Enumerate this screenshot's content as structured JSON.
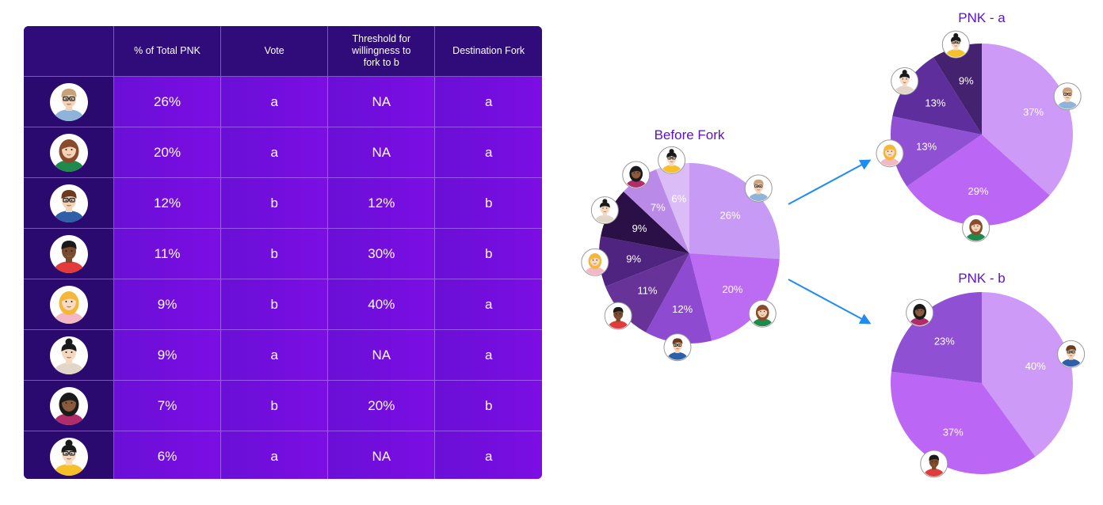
{
  "table": {
    "headers": [
      "",
      "% of Total PNK",
      "Vote",
      "Threshold for\nwillingness to\nfork to b",
      "Destination Fork"
    ],
    "rows": [
      {
        "person": "p1",
        "pct": "26%",
        "vote": "a",
        "threshold": "NA",
        "dest": "a"
      },
      {
        "person": "p2",
        "pct": "20%",
        "vote": "a",
        "threshold": "NA",
        "dest": "a"
      },
      {
        "person": "p3",
        "pct": "12%",
        "vote": "b",
        "threshold": "12%",
        "dest": "b"
      },
      {
        "person": "p4",
        "pct": "11%",
        "vote": "b",
        "threshold": "30%",
        "dest": "b"
      },
      {
        "person": "p5",
        "pct": "9%",
        "vote": "b",
        "threshold": "40%",
        "dest": "a"
      },
      {
        "person": "p6",
        "pct": "9%",
        "vote": "a",
        "threshold": "NA",
        "dest": "a"
      },
      {
        "person": "p7",
        "pct": "7%",
        "vote": "b",
        "threshold": "20%",
        "dest": "b"
      },
      {
        "person": "p8",
        "pct": "6%",
        "vote": "a",
        "threshold": "NA",
        "dest": "a"
      }
    ]
  },
  "people": {
    "p1": {
      "hair": "#c9a27a",
      "skin": "#f3d2b5",
      "shirt": "#8fb4d9",
      "glasses": true,
      "style": "short"
    },
    "p2": {
      "hair": "#8a4a2c",
      "skin": "#f3d2b5",
      "shirt": "#1f8a4c",
      "glasses": false,
      "style": "long"
    },
    "p3": {
      "hair": "#6b3a1f",
      "skin": "#f3d2b5",
      "shirt": "#2f5fa8",
      "glasses": true,
      "style": "short"
    },
    "p4": {
      "hair": "#1a1a1a",
      "skin": "#7a4a2c",
      "shirt": "#e23b3b",
      "glasses": false,
      "style": "short"
    },
    "p5": {
      "hair": "#f5b73a",
      "skin": "#f7dcc2",
      "shirt": "#f2b8c6",
      "glasses": false,
      "style": "curly"
    },
    "p6": {
      "hair": "#1a1a1a",
      "skin": "#f5d9bf",
      "shirt": "#e2d6c8",
      "glasses": false,
      "style": "bun"
    },
    "p7": {
      "hair": "#1a1a1a",
      "skin": "#8a5a3c",
      "shirt": "#b02d6a",
      "glasses": false,
      "style": "long"
    },
    "p8": {
      "hair": "#1a1a1a",
      "skin": "#f5d9bf",
      "shirt": "#f5c02a",
      "glasses": true,
      "style": "bun"
    }
  },
  "chart_data": [
    {
      "type": "pie",
      "title": "Before Fork",
      "slices": [
        {
          "person": "p1",
          "value": 26,
          "label": "26%",
          "color": "#c79af5"
        },
        {
          "person": "p2",
          "value": 20,
          "label": "20%",
          "color": "#bb6cf2"
        },
        {
          "person": "p3",
          "value": 12,
          "label": "12%",
          "color": "#8e4ad0"
        },
        {
          "person": "p4",
          "value": 11,
          "label": "11%",
          "color": "#673399"
        },
        {
          "person": "p5",
          "value": 9,
          "label": "9%",
          "color": "#4f2480"
        },
        {
          "person": "p6",
          "value": 9,
          "label": "9%",
          "color": "#2b0f47"
        },
        {
          "person": "p7",
          "value": 7,
          "label": "7%",
          "color": "#b98ae8"
        },
        {
          "person": "p8",
          "value": 6,
          "label": "6%",
          "color": "#dcbcf7"
        }
      ]
    },
    {
      "type": "pie",
      "title": "PNK - a",
      "slices": [
        {
          "person": "p1",
          "value": 37,
          "label": "37%",
          "color": "#cd9bf7"
        },
        {
          "person": "p2",
          "value": 29,
          "label": "29%",
          "color": "#bb66f5"
        },
        {
          "person": "p5",
          "value": 13,
          "label": "13%",
          "color": "#9050d4"
        },
        {
          "person": "p6",
          "value": 13,
          "label": "13%",
          "color": "#5e2f9c"
        },
        {
          "person": "p8",
          "value": 9,
          "label": "9%",
          "color": "#452270"
        }
      ]
    },
    {
      "type": "pie",
      "title": "PNK - b",
      "slices": [
        {
          "person": "p3",
          "value": 40,
          "label": "40%",
          "color": "#cd9bf7"
        },
        {
          "person": "p4",
          "value": 37,
          "label": "37%",
          "color": "#bb66f5"
        },
        {
          "person": "p7",
          "value": 23,
          "label": "23%",
          "color": "#9050d4"
        }
      ]
    }
  ],
  "arrow_color": "#1e8cf0"
}
